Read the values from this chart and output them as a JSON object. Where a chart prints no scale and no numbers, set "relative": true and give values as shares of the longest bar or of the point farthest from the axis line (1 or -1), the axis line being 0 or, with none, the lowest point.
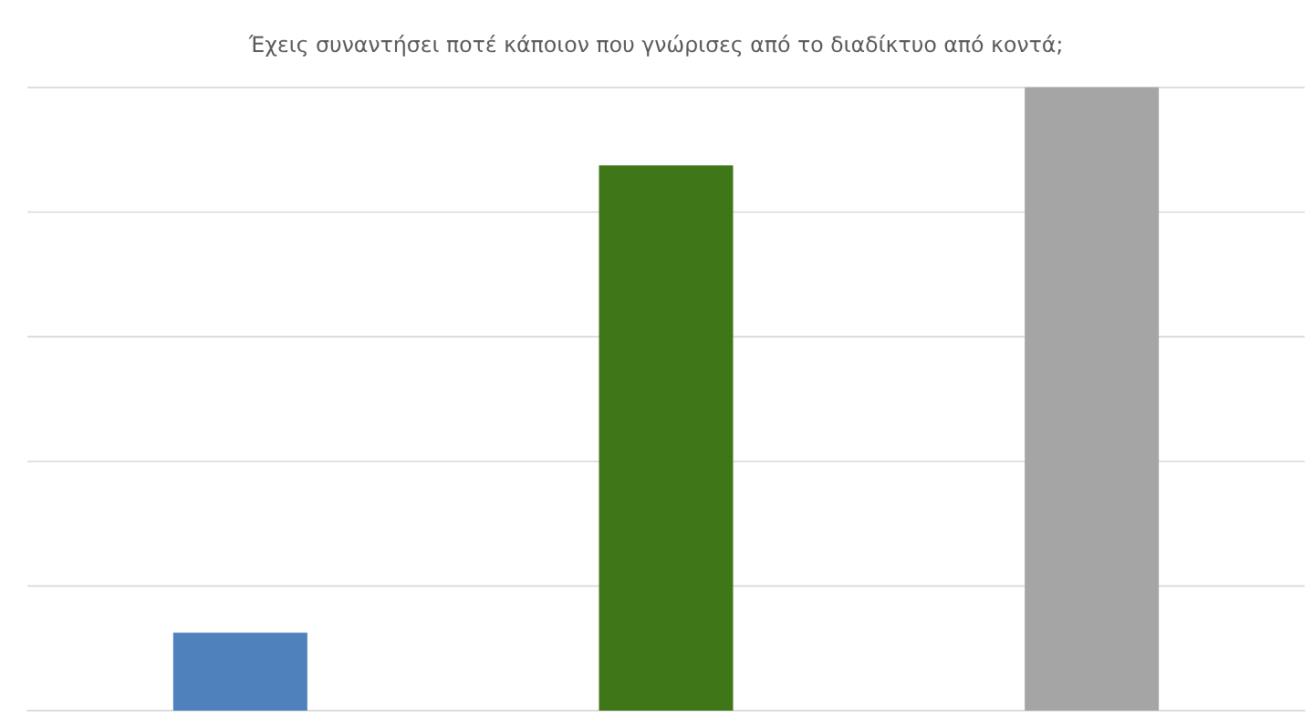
{
  "chart_data": {
    "type": "bar",
    "title": "Έχεις συναντήσει ποτέ κάποιον που γνώρισες από το διαδίκτυο από κοντά;",
    "categories": [
      null,
      null,
      null
    ],
    "values": [
      0.125,
      0.875,
      1
    ],
    "colors": [
      "#4f81bd",
      "#3f7618",
      "#a5a5a5"
    ],
    "relative": true,
    "grid": "y"
  }
}
